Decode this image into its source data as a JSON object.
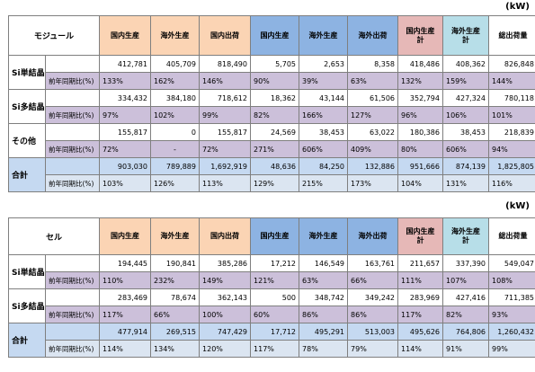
{
  "module": {
    "unit": "(kW)",
    "title": "モジュール",
    "headers": [
      "国内生産",
      "海外生産",
      "国内出荷",
      "国内生産",
      "海外生産",
      "海外出荷",
      "国内生産\n計",
      "海外生産\n計",
      "総出荷量"
    ],
    "yoy_label": "前年同期比(%)",
    "rows": [
      {
        "label": "Si単結晶",
        "values": [
          "412,781",
          "405,709",
          "818,490",
          "5,705",
          "2,653",
          "8,358",
          "418,486",
          "408,362",
          "826,848"
        ],
        "yoy": [
          "133%",
          "162%",
          "146%",
          "90%",
          "39%",
          "63%",
          "132%",
          "159%",
          "144%"
        ]
      },
      {
        "label": "Si多結晶",
        "values": [
          "334,432",
          "384,180",
          "718,612",
          "18,362",
          "43,144",
          "61,506",
          "352,794",
          "427,324",
          "780,118"
        ],
        "yoy": [
          "97%",
          "102%",
          "99%",
          "82%",
          "166%",
          "127%",
          "96%",
          "106%",
          "101%"
        ]
      },
      {
        "label": "その他",
        "values": [
          "155,817",
          "0",
          "155,817",
          "24,569",
          "38,453",
          "63,022",
          "180,386",
          "38,453",
          "218,839"
        ],
        "yoy": [
          "72%",
          "-",
          "72%",
          "271%",
          "606%",
          "409%",
          "80%",
          "606%",
          "94%"
        ]
      },
      {
        "label": "合計",
        "values": [
          "903,030",
          "789,889",
          "1,692,919",
          "48,636",
          "84,250",
          "132,886",
          "951,666",
          "874,139",
          "1,825,805"
        ],
        "yoy": [
          "103%",
          "126%",
          "113%",
          "129%",
          "215%",
          "173%",
          "104%",
          "131%",
          "116%"
        ]
      }
    ]
  },
  "cell": {
    "unit": "(kW)",
    "title": "セル",
    "headers": [
      "国内生産",
      "海外生産",
      "国内出荷",
      "国内生産",
      "海外生産",
      "海外出荷",
      "国内生産\n計",
      "海外生産\n計",
      "総出荷量"
    ],
    "yoy_label": "前年同期比(%)",
    "rows": [
      {
        "label": "Si単結晶",
        "values": [
          "194,445",
          "190,841",
          "385,286",
          "17,212",
          "146,549",
          "163,761",
          "211,657",
          "337,390",
          "549,047"
        ],
        "yoy": [
          "110%",
          "232%",
          "149%",
          "121%",
          "63%",
          "66%",
          "111%",
          "107%",
          "108%"
        ]
      },
      {
        "label": "Si多結晶",
        "values": [
          "283,469",
          "78,674",
          "362,143",
          "500",
          "348,742",
          "349,242",
          "283,969",
          "427,416",
          "711,385"
        ],
        "yoy": [
          "117%",
          "66%",
          "100%",
          "60%",
          "86%",
          "86%",
          "117%",
          "82%",
          "93%"
        ]
      },
      {
        "label": "合計",
        "values": [
          "477,914",
          "269,515",
          "747,429",
          "17,712",
          "495,291",
          "513,003",
          "495,626",
          "764,806",
          "1,260,432"
        ],
        "yoy": [
          "114%",
          "134%",
          "120%",
          "117%",
          "78%",
          "79%",
          "114%",
          "91%",
          "99%"
        ]
      }
    ]
  }
}
